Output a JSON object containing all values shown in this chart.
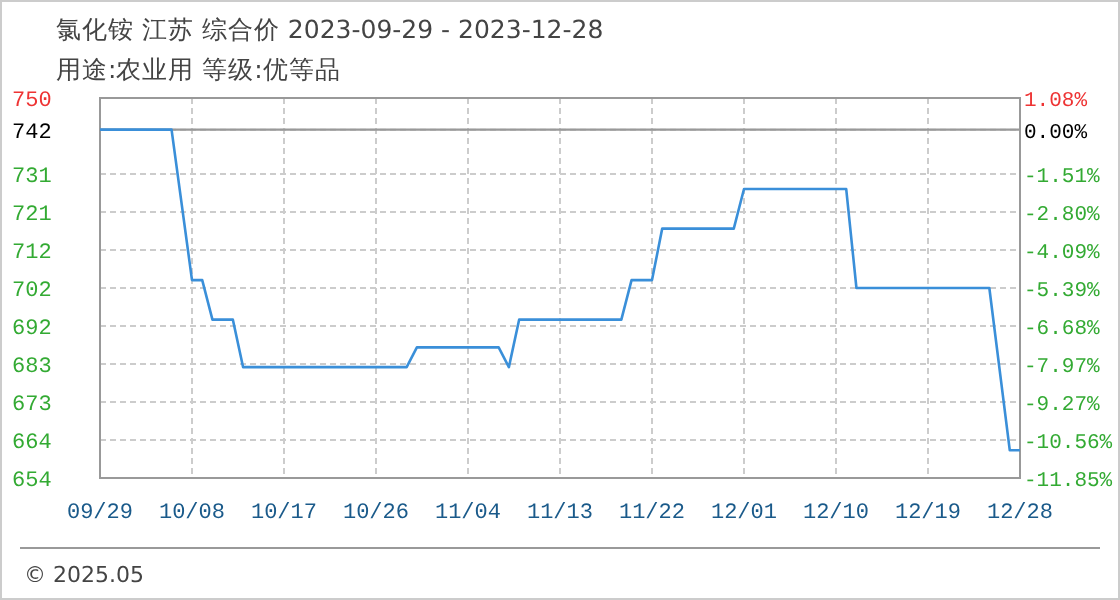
{
  "chart_data": {
    "type": "line",
    "title": "氯化铵 江苏 综合价 2023-09-29 - 2023-12-28",
    "subtitle": "用途:农业用 等级:优等品",
    "annotations": [
      "© 2025.05"
    ],
    "x": [
      "2023-09-29",
      "2023-10-06",
      "2023-10-08",
      "2023-10-09",
      "2023-10-10",
      "2023-10-12",
      "2023-10-13",
      "2023-10-29",
      "2023-10-30",
      "2023-11-07",
      "2023-11-08",
      "2023-11-09",
      "2023-11-19",
      "2023-11-20",
      "2023-11-22",
      "2023-11-23",
      "2023-11-30",
      "2023-12-01",
      "2023-12-11",
      "2023-12-12",
      "2023-12-25",
      "2023-12-27",
      "2023-12-28"
    ],
    "series": [
      {
        "color": "#3a8fd9",
        "values": [
          742,
          742,
          704,
          704,
          694,
          694,
          682,
          682,
          687,
          687,
          682,
          694,
          694,
          704,
          704,
          717,
          717,
          727,
          727,
          702,
          702,
          661,
          661
        ]
      }
    ],
    "xlim": [
      "2023-09-29",
      "2023-12-28"
    ],
    "xticks": [
      {
        "value": "2023-09-29",
        "label": "09/29"
      },
      {
        "value": "2023-10-08",
        "label": "10/08"
      },
      {
        "value": "2023-10-17",
        "label": "10/17"
      },
      {
        "value": "2023-10-26",
        "label": "10/26"
      },
      {
        "value": "2023-11-04",
        "label": "11/04"
      },
      {
        "value": "2023-11-13",
        "label": "11/13"
      },
      {
        "value": "2023-11-22",
        "label": "11/22"
      },
      {
        "value": "2023-12-01",
        "label": "12/01"
      },
      {
        "value": "2023-12-10",
        "label": "12/10"
      },
      {
        "value": "2023-12-19",
        "label": "12/19"
      },
      {
        "value": "2023-12-28",
        "label": "12/28"
      }
    ],
    "ylim": [
      654,
      750
    ],
    "yticks": [
      654,
      {
        "value": 663.6,
        "label": "664"
      },
      {
        "value": 673.2,
        "label": "673"
      },
      {
        "value": 682.8,
        "label": "683"
      },
      {
        "value": 692.4,
        "label": "692"
      },
      702,
      {
        "value": 711.6,
        "label": "712"
      },
      {
        "value": 721.2,
        "label": "721"
      },
      {
        "value": 730.8,
        "label": "731"
      },
      742,
      750
    ],
    "y2lim": [
      -11.85,
      1.08
    ],
    "y2ticks": [
      {
        "value": -11.85,
        "label": "-11.85%"
      },
      {
        "value": -10.56,
        "label": "-10.56%"
      },
      {
        "value": -9.27,
        "label": "-9.27%"
      },
      {
        "value": -7.97,
        "label": "-7.97%"
      },
      {
        "value": -6.68,
        "label": "-6.68%"
      },
      {
        "value": -5.39,
        "label": "-5.39%"
      },
      {
        "value": -4.09,
        "label": "-4.09%"
      },
      {
        "value": -2.8,
        "label": "-2.80%"
      },
      {
        "value": -1.51,
        "label": "-1.51%"
      },
      {
        "value": 0,
        "label": "0.00%"
      },
      {
        "value": 1.08,
        "label": "1.08%"
      }
    ],
    "ref_lines": [
      {
        "axis": "y",
        "value": 742,
        "color": "#999999"
      }
    ],
    "grid": true,
    "legend": false,
    "marker": "none",
    "line_style": "solid"
  }
}
